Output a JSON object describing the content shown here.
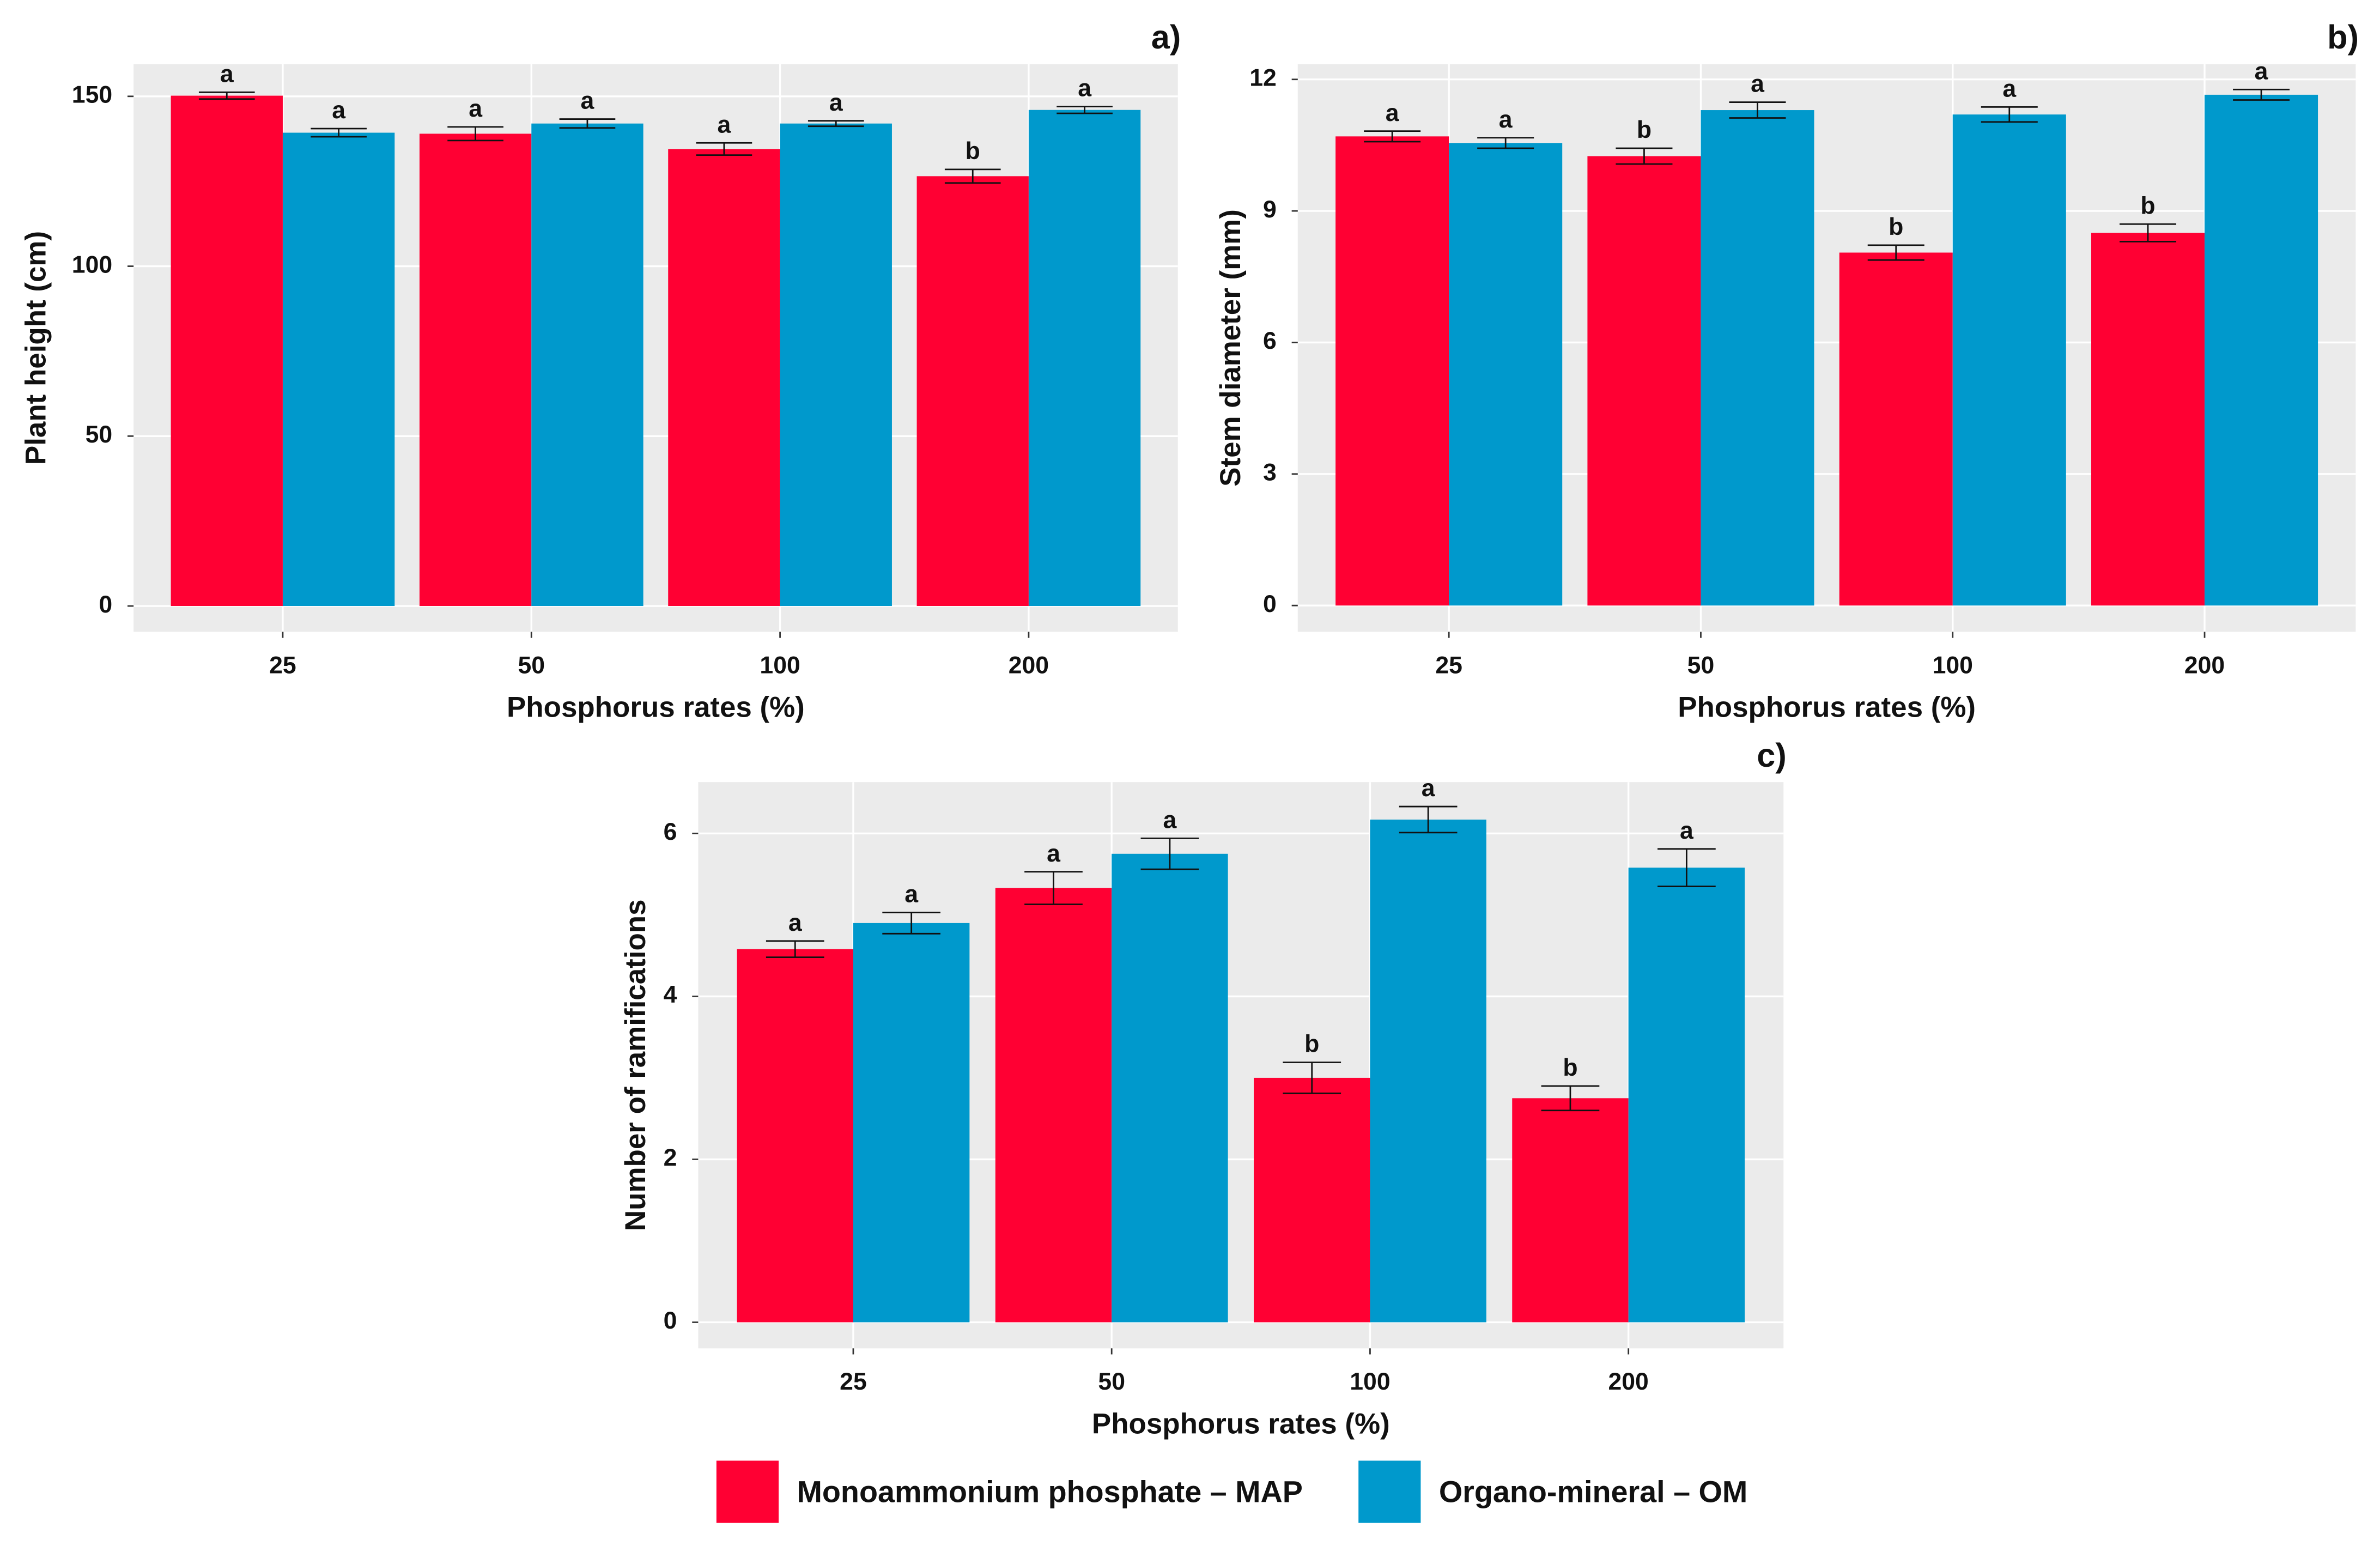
{
  "chart_data": [
    {
      "type": "bar",
      "panel_label": "a)",
      "x_label": "Phosphorus rates (%)",
      "y_label": "Plant height (cm)",
      "categories": [
        "25",
        "50",
        "100",
        "200"
      ],
      "ylim": [
        -7.6,
        159.5
      ],
      "yticks": [
        0,
        50,
        100,
        150
      ],
      "grid": true,
      "series": [
        {
          "color": "#ff0033",
          "values": [
            150.2,
            139,
            134.5,
            126.5
          ],
          "errors": [
            1,
            2,
            1.8,
            2
          ],
          "letters": [
            "a",
            "a",
            "a",
            "b"
          ]
        },
        {
          "color": "#0099cc",
          "values": [
            139.3,
            142,
            142,
            146
          ],
          "errors": [
            1.2,
            1.3,
            0.8,
            1
          ],
          "letters": [
            "a",
            "a",
            "a",
            "a"
          ]
        }
      ]
    },
    {
      "type": "bar",
      "panel_label": "b)",
      "x_label": "Phosphorus rates (%)",
      "y_label": "Stem diameter (mm)",
      "categories": [
        "25",
        "50",
        "100",
        "200"
      ],
      "ylim": [
        -0.6,
        12.35
      ],
      "yticks": [
        0,
        3,
        6,
        9,
        12
      ],
      "grid": true,
      "series": [
        {
          "color": "#ff0033",
          "values": [
            10.7,
            10.25,
            8.05,
            8.5
          ],
          "errors": [
            0.12,
            0.18,
            0.17,
            0.2
          ],
          "letters": [
            "a",
            "b",
            "b",
            "b"
          ]
        },
        {
          "color": "#0099cc",
          "values": [
            10.55,
            11.3,
            11.2,
            11.65
          ],
          "errors": [
            0.12,
            0.18,
            0.17,
            0.12
          ],
          "letters": [
            "a",
            "a",
            "a",
            "a"
          ]
        }
      ]
    },
    {
      "type": "bar",
      "panel_label": "c)",
      "x_label": "Phosphorus rates (%)",
      "y_label": "Number of ramifications",
      "categories": [
        "25",
        "50",
        "100",
        "200"
      ],
      "ylim": [
        -0.32,
        6.63
      ],
      "yticks": [
        0,
        2,
        4,
        6
      ],
      "grid": true,
      "series": [
        {
          "name": "Monoammonium phosphate – MAP",
          "color": "#ff0033",
          "values": [
            4.58,
            5.33,
            3.0,
            2.75
          ],
          "errors": [
            0.1,
            0.2,
            0.19,
            0.15
          ],
          "letters": [
            "a",
            "a",
            "b",
            "b"
          ]
        },
        {
          "name": "Organo-mineral – OM",
          "color": "#0099cc",
          "values": [
            4.9,
            5.75,
            6.17,
            5.58
          ],
          "errors": [
            0.13,
            0.19,
            0.16,
            0.23
          ],
          "letters": [
            "a",
            "a",
            "a",
            "a"
          ]
        }
      ]
    }
  ]
}
